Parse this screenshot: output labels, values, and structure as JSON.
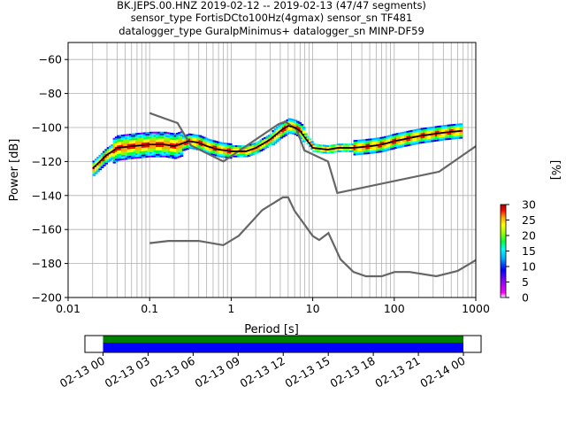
{
  "title_lines": [
    "BK.JEPS.00.HNZ   2019-02-12 -- 2019-02-13  (47/47 segments)",
    "sensor_type FortisDCto100Hz(4gmax) sensor_sn TF481",
    "datalogger_type GuralpMinimus+ datalogger_sn MINP-DF59"
  ],
  "chart_data": {
    "type": "heatmap",
    "xlabel": "Period [s]",
    "ylabel": "Power [dB]",
    "x_scale": "log",
    "xlim": [
      0.01,
      1000
    ],
    "ylim": [
      -200,
      -50
    ],
    "x_ticks": [
      {
        "value": 0.01,
        "label": "0.01"
      },
      {
        "value": 0.1,
        "label": "0.1"
      },
      {
        "value": 1,
        "label": "1"
      },
      {
        "value": 10,
        "label": "10"
      },
      {
        "value": 100,
        "label": "100"
      },
      {
        "value": 1000,
        "label": "1000"
      }
    ],
    "y_ticks": [
      {
        "value": -60,
        "label": "−60"
      },
      {
        "value": -80,
        "label": "−80"
      },
      {
        "value": -100,
        "label": "−100"
      },
      {
        "value": -120,
        "label": "−120"
      },
      {
        "value": -140,
        "label": "−140"
      },
      {
        "value": -160,
        "label": "−160"
      },
      {
        "value": -180,
        "label": "−180"
      },
      {
        "value": -200,
        "label": "−200"
      }
    ],
    "grid": true,
    "colorbar": {
      "label": "[%]",
      "range": [
        0,
        30
      ],
      "ticks": [
        {
          "value": 0,
          "label": "0"
        },
        {
          "value": 5,
          "label": "5"
        },
        {
          "value": 10,
          "label": "10"
        },
        {
          "value": 15,
          "label": "15"
        },
        {
          "value": 20,
          "label": "20"
        },
        {
          "value": 25,
          "label": "25"
        },
        {
          "value": 30,
          "label": "30"
        }
      ]
    },
    "mean_curve": [
      [
        0.02,
        -124
      ],
      [
        0.03,
        -116
      ],
      [
        0.04,
        -112
      ],
      [
        0.06,
        -111
      ],
      [
        0.1,
        -110
      ],
      [
        0.15,
        -110
      ],
      [
        0.2,
        -111
      ],
      [
        0.3,
        -108
      ],
      [
        0.4,
        -109
      ],
      [
        0.5,
        -111
      ],
      [
        0.7,
        -113
      ],
      [
        1,
        -114
      ],
      [
        1.5,
        -114
      ],
      [
        2,
        -112
      ],
      [
        3,
        -107
      ],
      [
        4,
        -102
      ],
      [
        5,
        -99
      ],
      [
        6,
        -100
      ],
      [
        7,
        -102
      ],
      [
        8,
        -106
      ],
      [
        10,
        -112
      ],
      [
        15,
        -113
      ],
      [
        20,
        -112
      ],
      [
        30,
        -112
      ],
      [
        50,
        -111
      ],
      [
        70,
        -110
      ],
      [
        100,
        -108
      ],
      [
        200,
        -105
      ],
      [
        400,
        -103
      ],
      [
        650,
        -102
      ]
    ],
    "nhnm": [
      [
        0.1,
        -91.5
      ],
      [
        0.22,
        -97.4
      ],
      [
        0.32,
        -110.5
      ],
      [
        0.8,
        -120
      ],
      [
        3.8,
        -98
      ],
      [
        4.6,
        -96.5
      ],
      [
        6.3,
        -101
      ],
      [
        7.9,
        -113.5
      ],
      [
        15.4,
        -120
      ],
      [
        20,
        -138.5
      ],
      [
        354.8,
        -126
      ],
      [
        1000,
        -111
      ]
    ],
    "nlnm": [
      [
        0.1,
        -168
      ],
      [
        0.17,
        -166.7
      ],
      [
        0.4,
        -166.7
      ],
      [
        0.8,
        -169.2
      ],
      [
        1.24,
        -163.7
      ],
      [
        2.4,
        -148.6
      ],
      [
        4.3,
        -141.1
      ],
      [
        5,
        -141.1
      ],
      [
        6,
        -149
      ],
      [
        10,
        -163.8
      ],
      [
        12,
        -166.2
      ],
      [
        15.6,
        -162.1
      ],
      [
        21.9,
        -177.5
      ],
      [
        31.6,
        -185
      ],
      [
        45,
        -187.5
      ],
      [
        70,
        -187.5
      ],
      [
        101,
        -185
      ],
      [
        154,
        -185
      ],
      [
        328,
        -187.5
      ],
      [
        600,
        -184.4
      ],
      [
        1000,
        -178
      ]
    ],
    "time_axis": {
      "tick_labels": [
        "02-13 00",
        "02-13 03",
        "02-13 06",
        "02-13 09",
        "02-13 12",
        "02-13 15",
        "02-13 18",
        "02-13 21",
        "02-14 00"
      ],
      "coverage": [
        "02-13 00",
        "02-14 00"
      ],
      "colors": {
        "used": "#0000ff",
        "gaps_checked": "#008000"
      }
    }
  },
  "colors": {
    "mean": "#000000",
    "noise_models": "#666666",
    "grid": "#b0b0b0",
    "colormap": [
      "#ffffff",
      "#ff00ff",
      "#8800ff",
      "#0000ff",
      "#00aaff",
      "#00ffff",
      "#00ff44",
      "#88ff00",
      "#ffff00",
      "#ffaa00",
      "#ff0000",
      "#aa0000"
    ]
  }
}
